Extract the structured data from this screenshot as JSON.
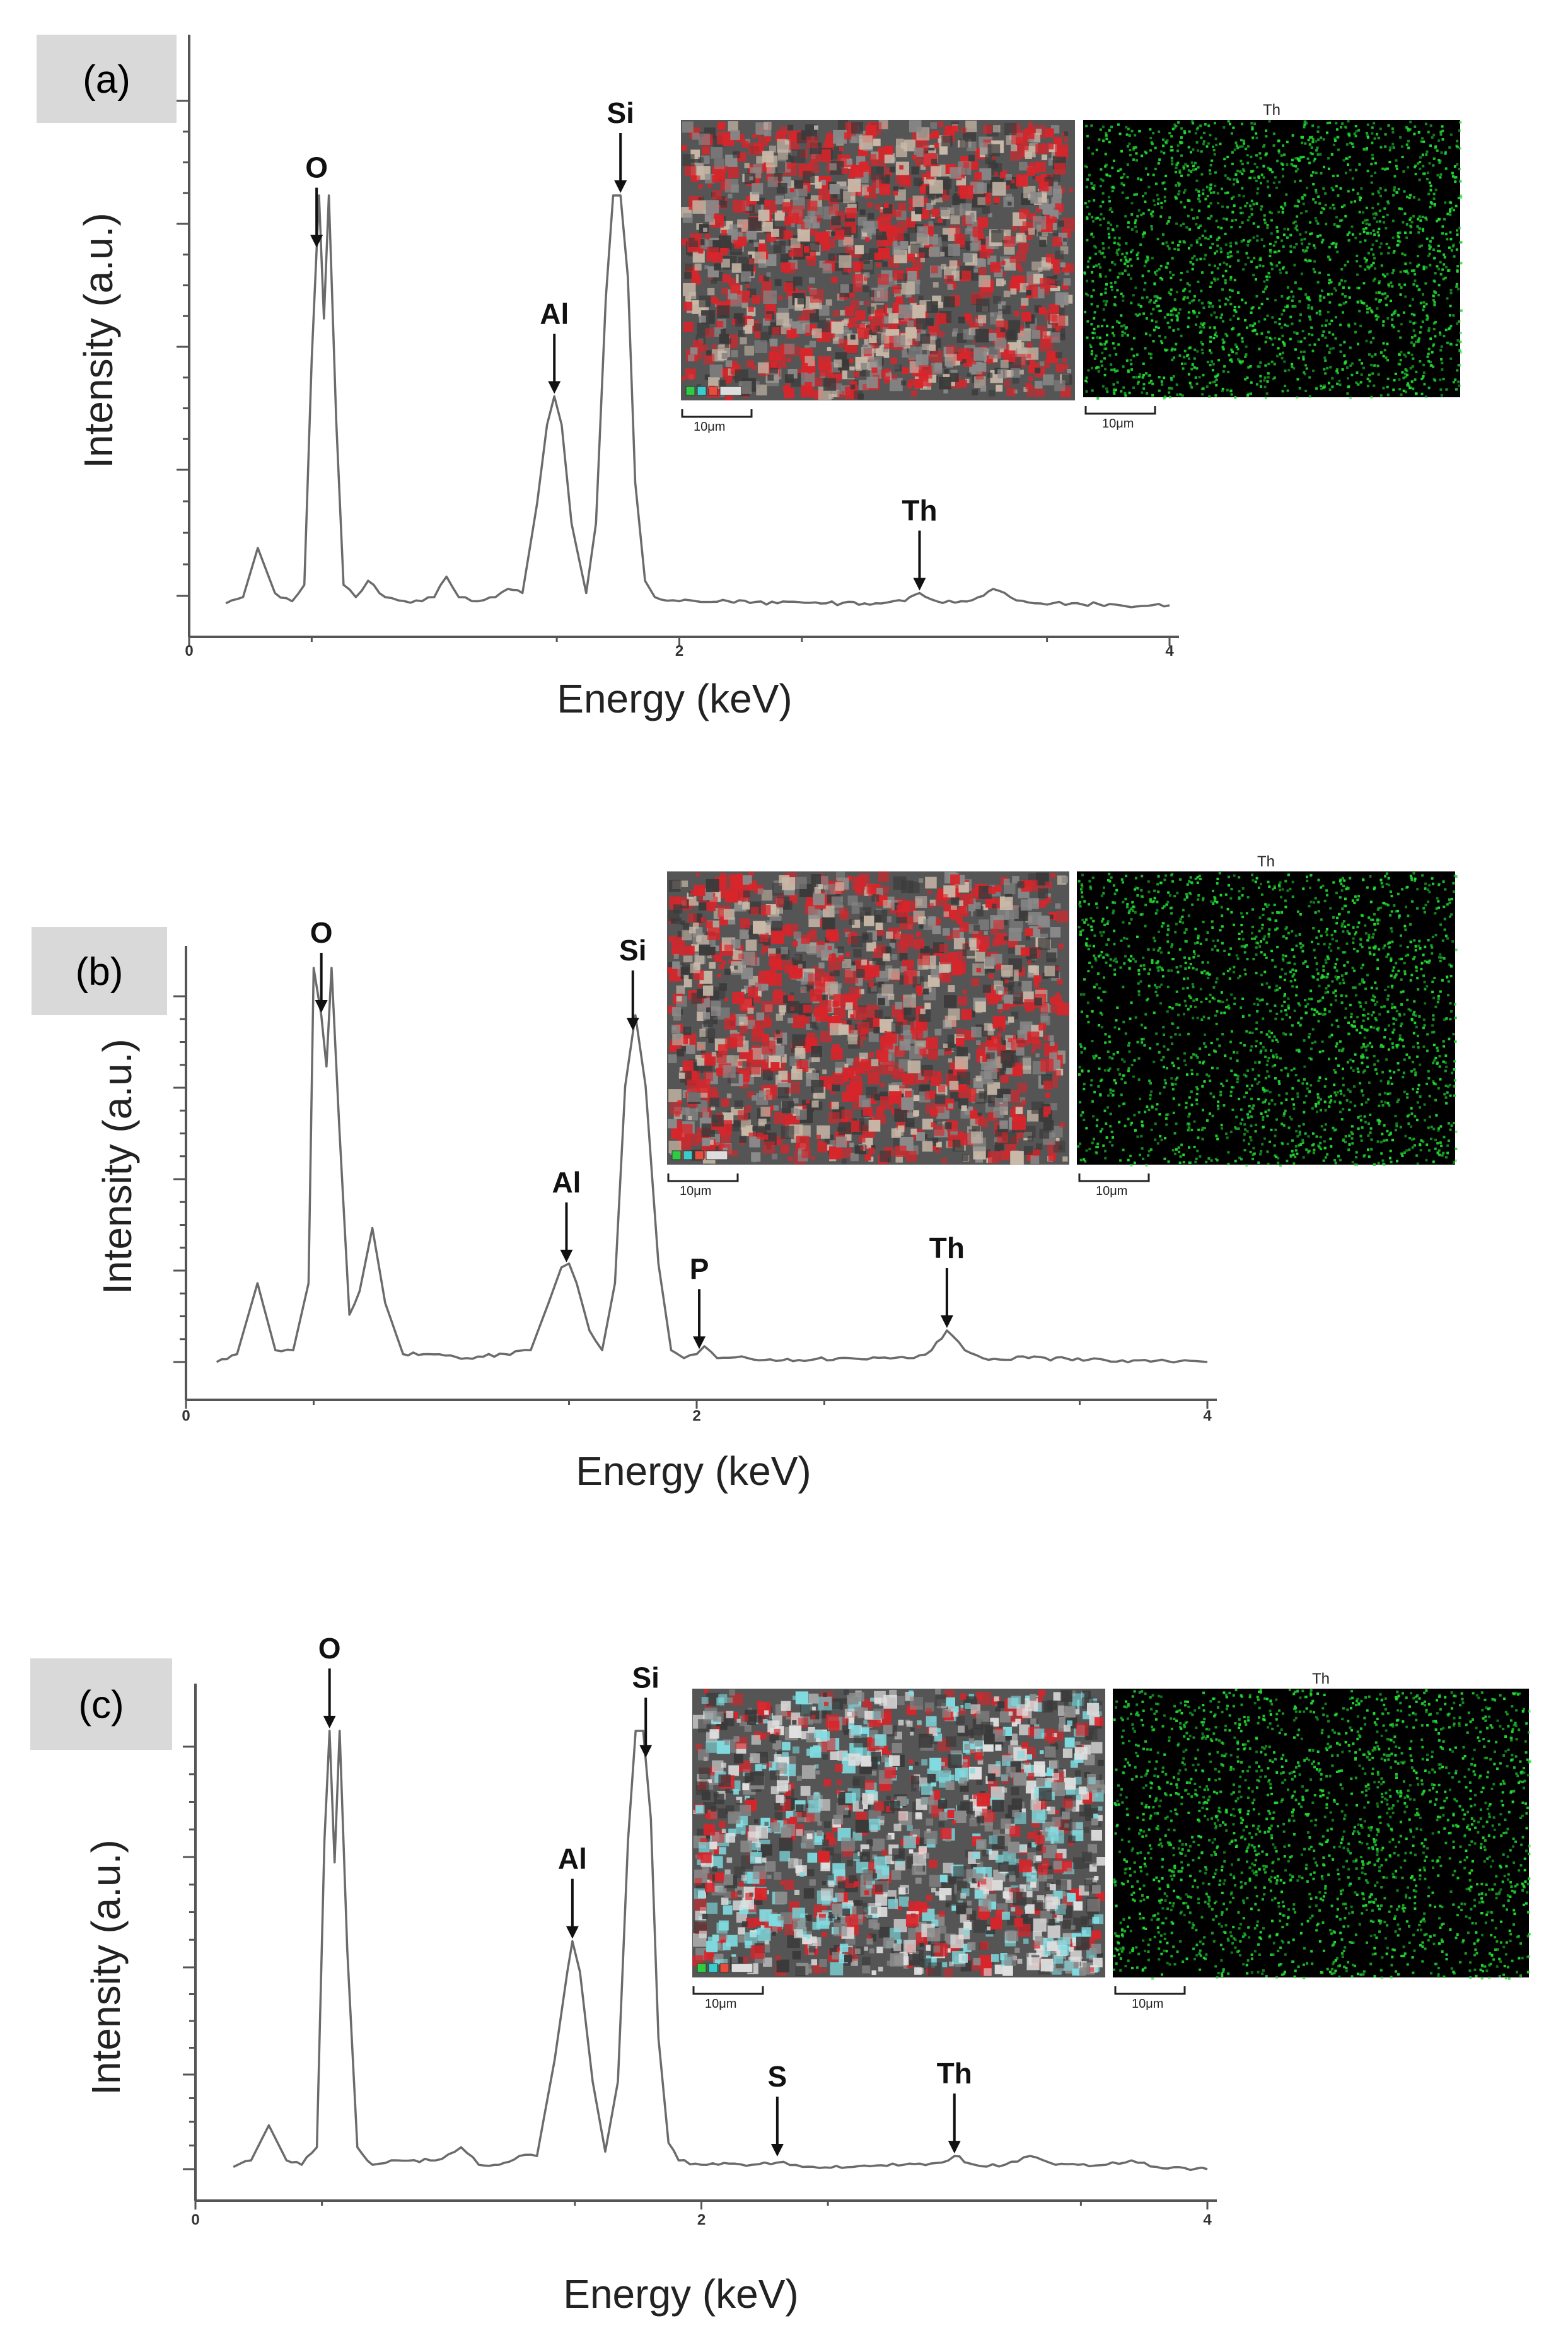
{
  "chart_data": [
    {
      "type": "line",
      "panel_label": "(a)",
      "xlabel": "Energy (keV)",
      "ylabel": "Intensity (a.u.)",
      "xlim": [
        0,
        4
      ],
      "ylim": [
        0,
        100
      ],
      "x_ticks": [
        "0",
        "2",
        "4"
      ],
      "grid": false,
      "series": [
        {
          "x": [
            0.15,
            0.22,
            0.28,
            0.35,
            0.42,
            0.47,
            0.5,
            0.53,
            0.55,
            0.57,
            0.6,
            0.63,
            0.68,
            0.73,
            0.8,
            0.88,
            0.95,
            1.0,
            1.05,
            1.1,
            1.18,
            1.25,
            1.3,
            1.36,
            1.42,
            1.46,
            1.49,
            1.52,
            1.56,
            1.62,
            1.66,
            1.7,
            1.73,
            1.76,
            1.79,
            1.82,
            1.86,
            1.9,
            2.0,
            2.2,
            2.4,
            2.6,
            2.8,
            2.92,
            2.98,
            3.05,
            3.15,
            3.22,
            3.28,
            3.35,
            3.45,
            3.6,
            3.8,
            4.0
          ],
          "y": [
            0.5,
            2,
            14,
            3,
            1,
            5,
            60,
            100,
            70,
            100,
            45,
            5,
            2,
            6,
            2,
            1,
            1,
            2,
            7,
            2,
            1,
            2,
            4,
            3,
            25,
            44,
            51,
            44,
            20,
            3,
            20,
            75,
            100,
            100,
            80,
            30,
            6,
            2,
            1,
            1,
            0.5,
            0.5,
            0.5,
            1,
            3,
            1,
            1,
            2,
            4,
            2,
            0.5,
            0.5,
            0,
            0
          ]
        }
      ],
      "peaks": [
        {
          "label": "O",
          "x": 0.52
        },
        {
          "label": "Al",
          "x": 1.49
        },
        {
          "label": "Si",
          "x": 1.76
        },
        {
          "label": "Th",
          "x": 2.98
        }
      ],
      "maps": {
        "th_title": "Th",
        "scale_left": "10μm",
        "scale_right": "10μm"
      }
    },
    {
      "type": "line",
      "panel_label": "(b)",
      "xlabel": "Energy (keV)",
      "ylabel": "Intensity (a.u.)",
      "xlim": [
        0,
        4
      ],
      "ylim": [
        0,
        100
      ],
      "x_ticks": [
        "0",
        "2",
        "4"
      ],
      "grid": false,
      "series": [
        {
          "x": [
            0.12,
            0.2,
            0.28,
            0.35,
            0.42,
            0.48,
            0.5,
            0.53,
            0.55,
            0.57,
            0.6,
            0.64,
            0.68,
            0.73,
            0.78,
            0.85,
            0.95,
            1.1,
            1.25,
            1.35,
            1.42,
            1.47,
            1.5,
            1.53,
            1.58,
            1.63,
            1.68,
            1.72,
            1.76,
            1.8,
            1.85,
            1.9,
            1.95,
            2.0,
            2.03,
            2.08,
            2.2,
            2.4,
            2.6,
            2.85,
            2.92,
            2.98,
            3.05,
            3.12,
            3.3,
            3.6,
            4.0
          ],
          "y": [
            0,
            2,
            20,
            3,
            3,
            20,
            100,
            88,
            75,
            100,
            60,
            12,
            18,
            34,
            15,
            2,
            2,
            1,
            2,
            3,
            15,
            24,
            25,
            20,
            8,
            3,
            20,
            70,
            88,
            70,
            25,
            3,
            1,
            2,
            4,
            1,
            1,
            0.5,
            1,
            1,
            3,
            8,
            3,
            1,
            1,
            0.5,
            0
          ]
        }
      ],
      "peaks": [
        {
          "label": "O",
          "x": 0.53
        },
        {
          "label": "Al",
          "x": 1.49
        },
        {
          "label": "Si",
          "x": 1.75
        },
        {
          "label": "P",
          "x": 2.01
        },
        {
          "label": "Th",
          "x": 2.98
        }
      ],
      "maps": {
        "th_title": "Th",
        "scale_left": "10μm",
        "scale_right": "10μm"
      }
    },
    {
      "type": "line",
      "panel_label": "(c)",
      "xlabel": "Energy (keV)",
      "ylabel": "Intensity (a.u.)",
      "xlim": [
        0,
        4
      ],
      "ylim": [
        0,
        100
      ],
      "x_ticks": [
        "0",
        "2",
        "4"
      ],
      "grid": false,
      "series": [
        {
          "x": [
            0.15,
            0.22,
            0.29,
            0.36,
            0.42,
            0.48,
            0.51,
            0.53,
            0.55,
            0.57,
            0.6,
            0.64,
            0.7,
            0.8,
            0.95,
            1.05,
            1.12,
            1.2,
            1.28,
            1.35,
            1.42,
            1.47,
            1.49,
            1.52,
            1.57,
            1.62,
            1.67,
            1.71,
            1.74,
            1.77,
            1.8,
            1.83,
            1.87,
            1.91,
            2.0,
            2.2,
            2.3,
            2.4,
            2.6,
            2.8,
            2.95,
            3.0,
            3.08,
            3.2,
            3.3,
            3.4,
            3.6,
            3.7,
            3.8,
            4.0
          ],
          "y": [
            0.5,
            2,
            10,
            2,
            1,
            5,
            75,
            100,
            70,
            100,
            50,
            5,
            1,
            2,
            2,
            5,
            1,
            1,
            3,
            3,
            25,
            45,
            52,
            45,
            20,
            4,
            20,
            75,
            100,
            100,
            80,
            30,
            6,
            2,
            1,
            1,
            1.5,
            0.5,
            0.5,
            1,
            1.5,
            3,
            1,
            1,
            3,
            1,
            1,
            2,
            0.5,
            0
          ]
        }
      ],
      "peaks": [
        {
          "label": "O",
          "x": 0.53
        },
        {
          "label": "Al",
          "x": 1.49
        },
        {
          "label": "Si",
          "x": 1.78
        },
        {
          "label": "S",
          "x": 2.3
        },
        {
          "label": "Th",
          "x": 3.0
        }
      ],
      "maps": {
        "th_title": "Th",
        "scale_left": "10μm",
        "scale_right": "10μm"
      }
    }
  ],
  "colors": {
    "map_green": "#22dd33",
    "map_red": "#d8252b",
    "map_cyan": "#7fdbe0",
    "map_gray": "#8a8a8a",
    "label_box": "#d9d9d9"
  }
}
